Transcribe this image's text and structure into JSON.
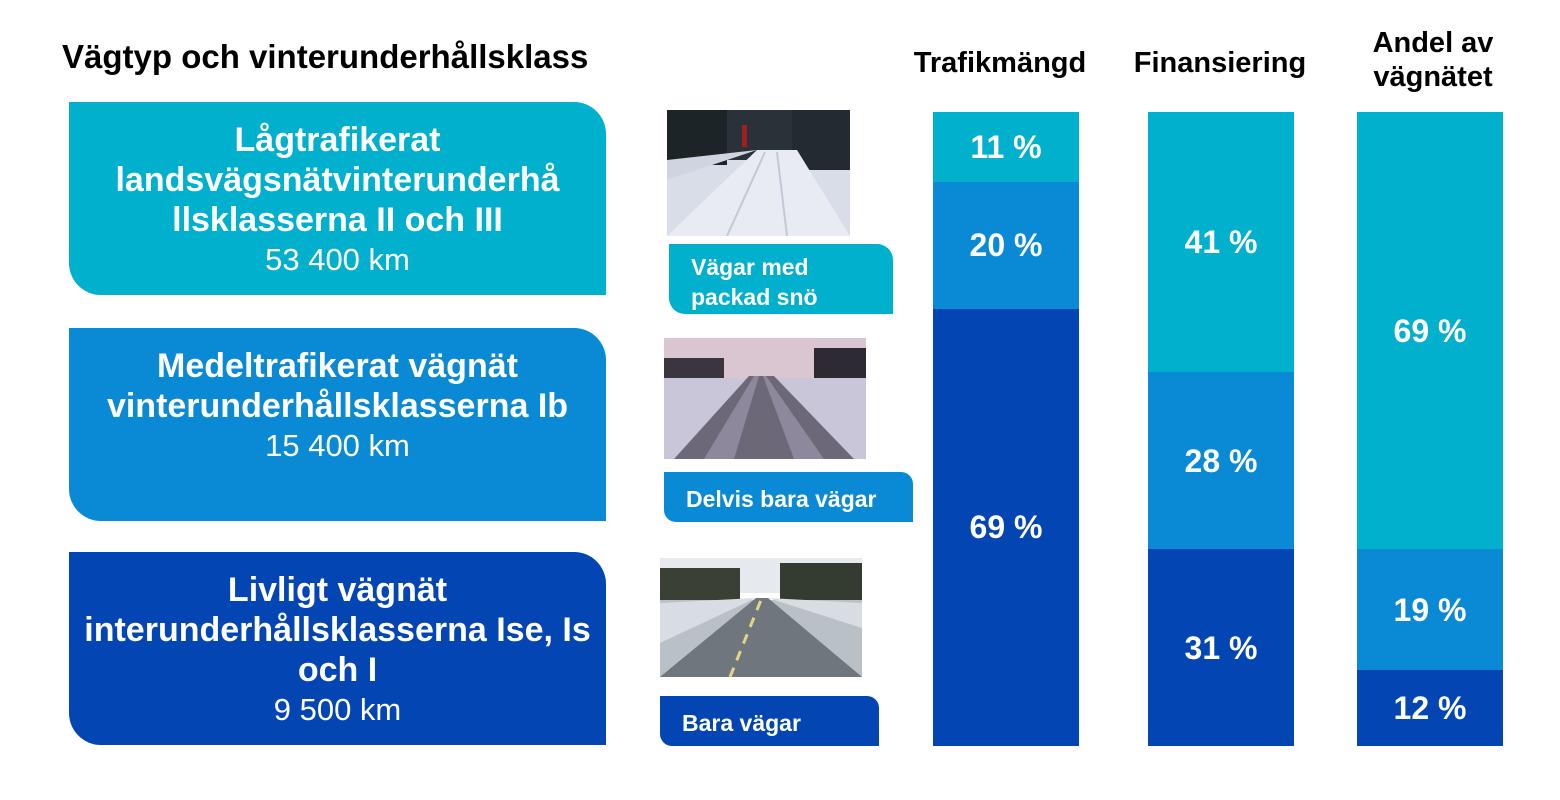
{
  "title": "Vägtyp och vinterunderhållsklass",
  "colors": {
    "light": "#00B0CC",
    "mid": "#0A8AD4",
    "dark": "#0445B4"
  },
  "classes": [
    {
      "name": "Lågtrafikerat landsvägsnätvinterunderhå llsklasserna II och III",
      "km": "53 400 km",
      "caption": "Vägar med packad snö",
      "photo": "snow-covered-road-photo"
    },
    {
      "name": "Medeltrafikerat vägnät vinterunderhållsklasserna Ib",
      "km": "15 400 km",
      "caption": "Delvis bara vägar",
      "photo": "partly-bare-road-photo"
    },
    {
      "name": "Livligt vägnät interunderhållsklasserna Ise, Is och I",
      "km": "9 500 km",
      "caption": "Bara vägar",
      "photo": "bare-road-photo"
    }
  ],
  "chart_data": {
    "type": "bar",
    "stacked": true,
    "categories": [
      "Trafikmängd",
      "Finansiering",
      "Andel av vägnätet"
    ],
    "series": [
      {
        "values": [
          11,
          41,
          69
        ],
        "color": "#00B0CC"
      },
      {
        "values": [
          20,
          28,
          19
        ],
        "color": "#0A8AD4"
      },
      {
        "values": [
          69,
          31,
          12
        ],
        "color": "#0445B4"
      }
    ],
    "labels": [
      [
        "11 %",
        "20 %",
        "69 %"
      ],
      [
        "41 %",
        "28 %",
        "31 %"
      ],
      [
        "69 %",
        "19 %",
        "12 %"
      ]
    ],
    "unit": "%",
    "ylim": [
      0,
      100
    ]
  }
}
